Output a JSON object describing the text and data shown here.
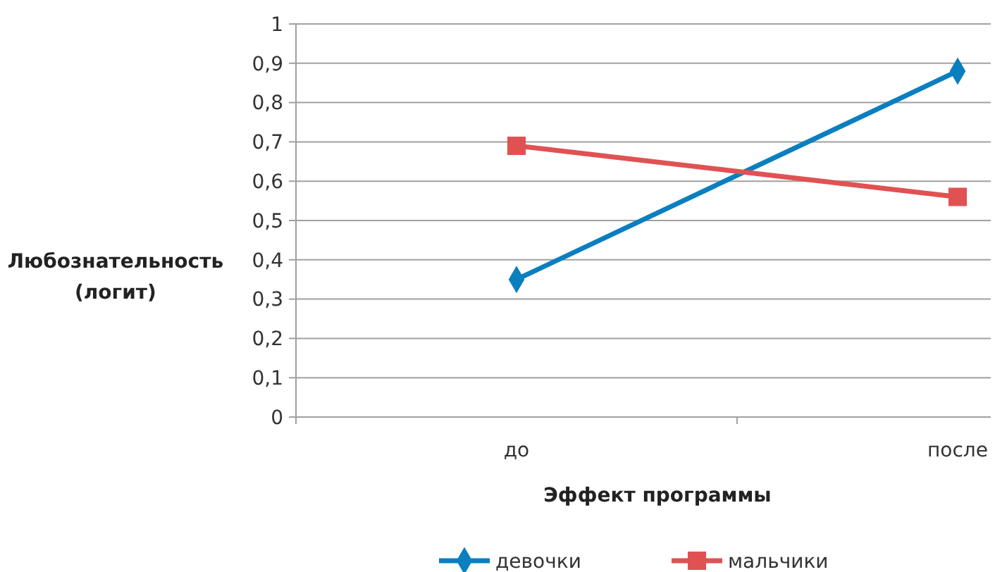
{
  "chart_data": {
    "type": "line",
    "xlabel": "Эффект программы",
    "ylabel": "Любознательность\n(логит)",
    "categories": [
      "до",
      "после"
    ],
    "series": [
      {
        "name": "девочки",
        "color": "#0a7fc0",
        "values": [
          0.35,
          0.88
        ],
        "marker": "diamond"
      },
      {
        "name": "мальчики",
        "color": "#e05252",
        "values": [
          0.69,
          0.56
        ],
        "marker": "square"
      }
    ],
    "ylim": [
      0,
      1
    ],
    "yticks": [
      {
        "value": 0,
        "label": "0"
      },
      {
        "value": 0.1,
        "label": "0,1"
      },
      {
        "value": 0.2,
        "label": "0,2"
      },
      {
        "value": 0.3,
        "label": "0,3"
      },
      {
        "value": 0.4,
        "label": "0,4"
      },
      {
        "value": 0.5,
        "label": "0,5"
      },
      {
        "value": 0.6,
        "label": "0,6"
      },
      {
        "value": 0.7,
        "label": "0,7"
      },
      {
        "value": 0.8,
        "label": "0,8"
      },
      {
        "value": 0.9,
        "label": "0,9"
      },
      {
        "value": 1,
        "label": "1"
      }
    ],
    "grid": "y",
    "legend": "bottom"
  }
}
